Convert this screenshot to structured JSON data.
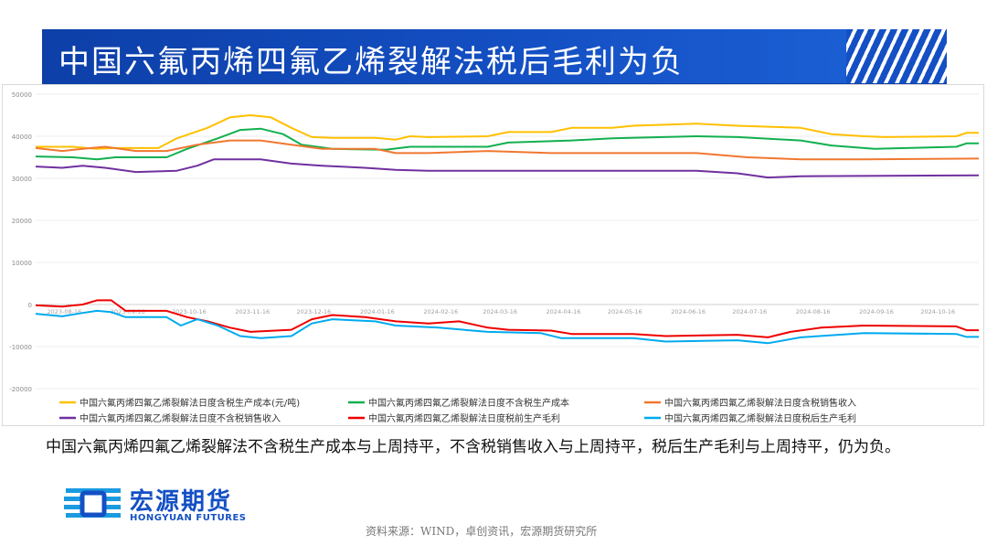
{
  "title": "中国六氟丙烯四氟乙烯裂解法税后毛利为负",
  "commentary": "中国六氟丙烯四氟乙烯裂解法不含税生产成本与上周持平，不含税销售收入与上周持平，税后生产毛利与上周持平，仍为负。",
  "source": "资料来源：WIND，卓创资讯，宏源期货研究所",
  "logo": {
    "cn": "宏源期货",
    "en": "HONGYUAN FUTURES",
    "icon": "hongyuan-logo-icon"
  },
  "colors": {
    "banner": "#1450c4",
    "yellow": "#ffc000",
    "green": "#12b050",
    "orange": "#f07830",
    "purple": "#7030a0",
    "red": "#ee0000",
    "blue": "#00aaee"
  },
  "chart_data": {
    "type": "line",
    "ylim": [
      -20000,
      50000
    ],
    "yticks": [
      "50000",
      "40000",
      "30000",
      "20000",
      "10000",
      "0",
      "-10000",
      "-20000"
    ],
    "xticks": [
      "2023-08-16",
      "2023-09-16",
      "2023-10-16",
      "2023-11-16",
      "2023-12-16",
      "2024-01-16",
      "2024-02-16",
      "2024-03-16",
      "2024-04-16",
      "2024-05-16",
      "2024-06-16",
      "2024-07-16",
      "2024-08-16",
      "2024-09-16",
      "2024-10-16"
    ],
    "x_range": [
      "2023-08-02",
      "2024-11-05"
    ],
    "grid": true,
    "legend_position": "bottom",
    "series": [
      {
        "name": "中国六氟丙烯四氟乙烯裂解法日度含税生产成本(元/吨)",
        "color": "#ffc000",
        "points": [
          [
            "2023-08-02",
            37500
          ],
          [
            "2023-08-20",
            37500
          ],
          [
            "2023-09-01",
            37000
          ],
          [
            "2023-09-10",
            37200
          ],
          [
            "2023-10-01",
            37200
          ],
          [
            "2023-10-10",
            39500
          ],
          [
            "2023-10-25",
            42000
          ],
          [
            "2023-11-05",
            44500
          ],
          [
            "2023-11-15",
            45000
          ],
          [
            "2023-11-25",
            44500
          ],
          [
            "2023-12-05",
            42000
          ],
          [
            "2023-12-15",
            39800
          ],
          [
            "2023-12-25",
            39600
          ],
          [
            "2024-01-15",
            39600
          ],
          [
            "2024-01-25",
            39200
          ],
          [
            "2024-02-01",
            40000
          ],
          [
            "2024-02-10",
            39800
          ],
          [
            "2024-03-10",
            40000
          ],
          [
            "2024-03-20",
            41000
          ],
          [
            "2024-04-10",
            41000
          ],
          [
            "2024-04-20",
            42000
          ],
          [
            "2024-05-10",
            42000
          ],
          [
            "2024-05-20",
            42500
          ],
          [
            "2024-06-20",
            43000
          ],
          [
            "2024-07-10",
            42500
          ],
          [
            "2024-08-10",
            42000
          ],
          [
            "2024-08-25",
            40500
          ],
          [
            "2024-09-10",
            40000
          ],
          [
            "2024-09-20",
            39800
          ],
          [
            "2024-10-25",
            40000
          ],
          [
            "2024-10-30",
            40800
          ],
          [
            "2024-11-05",
            40800
          ]
        ]
      },
      {
        "name": "中国六氟丙烯四氟乙烯裂解法日度不含税生产成本",
        "color": "#12b050",
        "points": [
          [
            "2023-08-02",
            35200
          ],
          [
            "2023-08-20",
            35000
          ],
          [
            "2023-09-01",
            34500
          ],
          [
            "2023-09-10",
            35000
          ],
          [
            "2023-10-05",
            35000
          ],
          [
            "2023-10-15",
            37000
          ],
          [
            "2023-10-30",
            39500
          ],
          [
            "2023-11-10",
            41500
          ],
          [
            "2023-11-20",
            41800
          ],
          [
            "2023-12-01",
            40500
          ],
          [
            "2023-12-10",
            38000
          ],
          [
            "2023-12-25",
            37000
          ],
          [
            "2024-01-20",
            36800
          ],
          [
            "2024-02-01",
            37500
          ],
          [
            "2024-03-10",
            37500
          ],
          [
            "2024-03-20",
            38500
          ],
          [
            "2024-04-20",
            39000
          ],
          [
            "2024-05-10",
            39500
          ],
          [
            "2024-06-20",
            40000
          ],
          [
            "2024-07-10",
            39800
          ],
          [
            "2024-08-10",
            39000
          ],
          [
            "2024-08-25",
            37800
          ],
          [
            "2024-09-15",
            37000
          ],
          [
            "2024-10-25",
            37500
          ],
          [
            "2024-10-30",
            38300
          ],
          [
            "2024-11-05",
            38300
          ]
        ]
      },
      {
        "name": "中国六氟丙烯四氟乙烯裂解法日度含税销售收入",
        "color": "#f07830",
        "points": [
          [
            "2023-08-02",
            37200
          ],
          [
            "2023-08-15",
            36500
          ],
          [
            "2023-08-25",
            37000
          ],
          [
            "2023-09-05",
            37500
          ],
          [
            "2023-09-20",
            36500
          ],
          [
            "2023-10-05",
            36500
          ],
          [
            "2023-10-20",
            38000
          ],
          [
            "2023-11-05",
            39000
          ],
          [
            "2023-11-20",
            39000
          ],
          [
            "2023-12-05",
            38000
          ],
          [
            "2023-12-20",
            37000
          ],
          [
            "2024-01-15",
            37000
          ],
          [
            "2024-01-25",
            36000
          ],
          [
            "2024-02-10",
            36000
          ],
          [
            "2024-03-10",
            36500
          ],
          [
            "2024-04-10",
            36000
          ],
          [
            "2024-06-20",
            36000
          ],
          [
            "2024-07-15",
            35000
          ],
          [
            "2024-08-10",
            34500
          ],
          [
            "2024-09-10",
            34500
          ],
          [
            "2024-11-05",
            34700
          ]
        ]
      },
      {
        "name": "中国六氟丙烯四氟乙烯裂解法日度不含税销售收入",
        "color": "#7030a0",
        "points": [
          [
            "2023-08-02",
            32800
          ],
          [
            "2023-08-15",
            32500
          ],
          [
            "2023-08-25",
            33000
          ],
          [
            "2023-09-05",
            32500
          ],
          [
            "2023-09-20",
            31500
          ],
          [
            "2023-10-10",
            31800
          ],
          [
            "2023-10-20",
            33000
          ],
          [
            "2023-10-28",
            34500
          ],
          [
            "2023-11-20",
            34500
          ],
          [
            "2023-12-05",
            33500
          ],
          [
            "2023-12-20",
            33000
          ],
          [
            "2024-01-10",
            32500
          ],
          [
            "2024-01-25",
            32000
          ],
          [
            "2024-02-10",
            31800
          ],
          [
            "2024-06-20",
            31800
          ],
          [
            "2024-07-10",
            31200
          ],
          [
            "2024-07-25",
            30200
          ],
          [
            "2024-08-10",
            30500
          ],
          [
            "2024-11-05",
            30700
          ]
        ]
      },
      {
        "name": "中国六氟丙烯四氟乙烯裂解法日度税前生产毛利",
        "color": "#ee0000",
        "points": [
          [
            "2023-08-02",
            -200
          ],
          [
            "2023-08-15",
            -500
          ],
          [
            "2023-08-25",
            0
          ],
          [
            "2023-09-01",
            1000
          ],
          [
            "2023-09-08",
            1000
          ],
          [
            "2023-09-15",
            -1500
          ],
          [
            "2023-10-05",
            -1500
          ],
          [
            "2023-10-15",
            -3000
          ],
          [
            "2023-10-25",
            -4000
          ],
          [
            "2023-11-05",
            -5500
          ],
          [
            "2023-11-15",
            -6500
          ],
          [
            "2023-12-05",
            -6000
          ],
          [
            "2023-12-15",
            -3500
          ],
          [
            "2023-12-25",
            -2500
          ],
          [
            "2024-01-10",
            -3000
          ],
          [
            "2024-01-25",
            -4000
          ],
          [
            "2024-02-10",
            -4500
          ],
          [
            "2024-02-25",
            -4000
          ],
          [
            "2024-03-10",
            -5500
          ],
          [
            "2024-03-20",
            -6000
          ],
          [
            "2024-04-10",
            -6200
          ],
          [
            "2024-04-20",
            -7000
          ],
          [
            "2024-05-20",
            -7000
          ],
          [
            "2024-06-05",
            -7500
          ],
          [
            "2024-07-10",
            -7200
          ],
          [
            "2024-07-25",
            -7800
          ],
          [
            "2024-08-05",
            -6500
          ],
          [
            "2024-08-20",
            -5500
          ],
          [
            "2024-09-10",
            -5000
          ],
          [
            "2024-10-25",
            -5200
          ],
          [
            "2024-10-30",
            -6100
          ],
          [
            "2024-11-05",
            -6100
          ]
        ]
      },
      {
        "name": "中国六氟丙烯四氟乙烯裂解法日度税后生产毛利",
        "color": "#00aaee",
        "points": [
          [
            "2023-08-02",
            -2200
          ],
          [
            "2023-08-15",
            -2800
          ],
          [
            "2023-08-25",
            -2000
          ],
          [
            "2023-09-01",
            -1500
          ],
          [
            "2023-09-08",
            -1800
          ],
          [
            "2023-09-15",
            -3000
          ],
          [
            "2023-10-05",
            -3000
          ],
          [
            "2023-10-12",
            -5000
          ],
          [
            "2023-10-20",
            -3500
          ],
          [
            "2023-10-30",
            -5000
          ],
          [
            "2023-11-10",
            -7500
          ],
          [
            "2023-11-20",
            -8000
          ],
          [
            "2023-12-05",
            -7500
          ],
          [
            "2023-12-15",
            -4500
          ],
          [
            "2023-12-25",
            -3500
          ],
          [
            "2024-01-15",
            -4000
          ],
          [
            "2024-01-25",
            -5000
          ],
          [
            "2024-02-15",
            -5500
          ],
          [
            "2024-03-10",
            -6500
          ],
          [
            "2024-04-05",
            -6800
          ],
          [
            "2024-04-15",
            -8000
          ],
          [
            "2024-05-20",
            -8000
          ],
          [
            "2024-06-05",
            -8800
          ],
          [
            "2024-07-10",
            -8500
          ],
          [
            "2024-07-25",
            -9200
          ],
          [
            "2024-08-10",
            -7800
          ],
          [
            "2024-09-10",
            -6800
          ],
          [
            "2024-10-25",
            -7000
          ],
          [
            "2024-10-30",
            -7700
          ],
          [
            "2024-11-05",
            -7700
          ]
        ]
      }
    ]
  }
}
